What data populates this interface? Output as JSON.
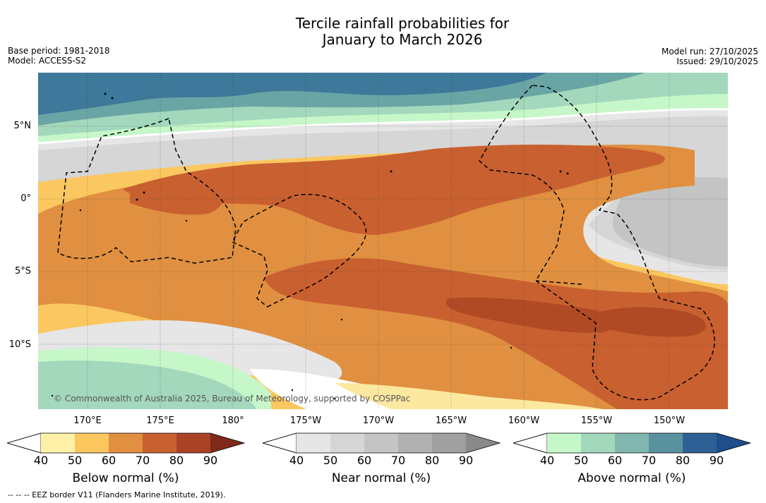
{
  "title": {
    "line1": "Tercile rainfall probabilities for",
    "line2": "January to March 2026"
  },
  "meta_left": {
    "base_period": "Base period: 1981-2018",
    "model": "Model: ACCESS-S2"
  },
  "meta_right": {
    "model_run": "Model run: 27/10/2025",
    "issued": "Issued: 29/10/2025"
  },
  "map": {
    "lat_labels": [
      "5°N",
      "0°",
      "5°S",
      "10°S"
    ],
    "lon_labels": [
      "170°E",
      "175°E",
      "180°",
      "175°W",
      "170°W",
      "165°W",
      "160°W",
      "155°W",
      "150°W"
    ],
    "copyright": "© Commonwealth of Australia 2025, Bureau of Meteorology, supported by COSPPac",
    "colors": {
      "bn50": "#fde8a0",
      "bn60": "#fbc760",
      "bn70": "#e09040",
      "bn80": "#c96030",
      "bn90": "#b04a25",
      "nn40": "#e6e6e6",
      "nn50": "#d6d6d6",
      "nn60": "#c4c4c4",
      "an40": "#c6f7c8",
      "an50": "#a3d8bd",
      "an60": "#6aa5a5",
      "an70": "#3e789a",
      "an80": "#2f6095"
    }
  },
  "colorbars": [
    {
      "label": "Below normal (%)",
      "ticks": [
        "40",
        "50",
        "60",
        "70",
        "80",
        "90"
      ],
      "colors": [
        "#fff1a8",
        "#fcc75f",
        "#e09040",
        "#c96030",
        "#aa4325",
        "#7f2a1a"
      ]
    },
    {
      "label": "Near normal (%)",
      "ticks": [
        "40",
        "50",
        "60",
        "70",
        "80",
        "90"
      ],
      "colors": [
        "#e6e6e6",
        "#d6d6d6",
        "#c4c4c4",
        "#b0b0b0",
        "#a0a0a0",
        "#8a8a8a"
      ]
    },
    {
      "label": "Above normal (%)",
      "ticks": [
        "40",
        "50",
        "60",
        "70",
        "80",
        "90"
      ],
      "colors": [
        "#c6f7c8",
        "#a3d8bd",
        "#80b6ad",
        "#5a919f",
        "#2f6095",
        "#1e4e8c"
      ]
    }
  ],
  "footer": "--  --  -- EEZ border V11 (Flanders Marine Institute, 2019)."
}
